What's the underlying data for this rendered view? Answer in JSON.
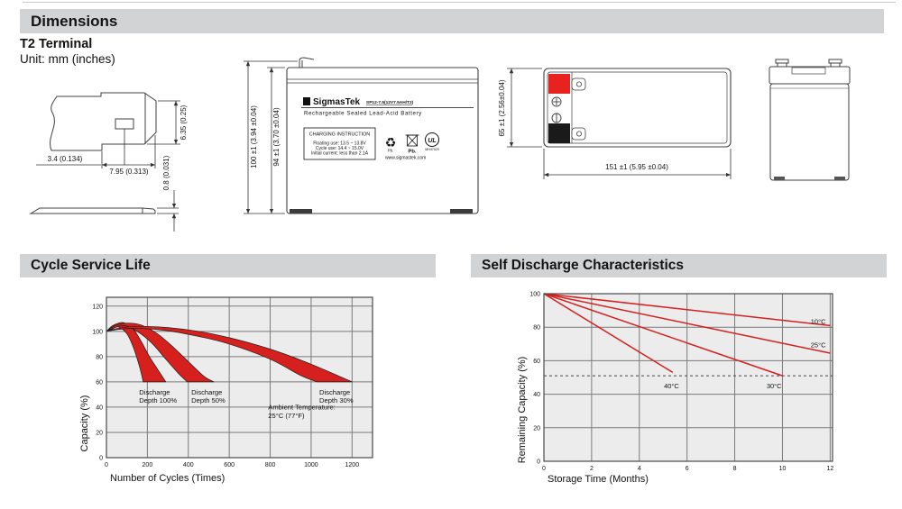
{
  "page": {
    "section_dimensions": "Dimensions",
    "terminal_type": "T2 Terminal",
    "unit_note": "Unit: mm (inches)"
  },
  "sections": {
    "cycle_title": "Cycle Service Life",
    "self_title": "Self Discharge Characteristics"
  },
  "terminal_drawing": {
    "height": "6.35 (0.25)",
    "hole_offset": "3.4 (0.134)",
    "width": "7.95 (0.313)",
    "thickness": "0.8 (0.031)"
  },
  "front_view": {
    "overall_height": "100 ±1 (3.94 ±0.04)",
    "case_height": "94 ±1 (3.70 ±0.04)"
  },
  "top_view": {
    "width_dim": "65 ±1 (2.56±0.04)",
    "length_dim": "151 ±1 (5.95 ±0.04)"
  },
  "battery_label": {
    "sigma": "Σ",
    "brand": "SigmasTek",
    "model": "SP12-7.5(12V7.5AH/T2)",
    "subtitle": "Rechargeable Sealed Lead-Acid Battery",
    "charging_title": "CHARGING INSTRUCTION",
    "charging_lines": [
      "Floating use: 13.5 ~ 13.8V",
      "Cycle use: 14.4 ~ 15.0V",
      "Initial current: less than 2.1A"
    ],
    "recycle_symbol": "♻",
    "recycle_pb": "Pb.",
    "bin_pb": "Pb.",
    "ul_text": "UL",
    "ul_code": "MH47929",
    "website": "www.sigmastek.com"
  },
  "colors": {
    "accent_red": "#d5201e",
    "terminal_red": "#e8231f",
    "terminal_black": "#1a1a1a",
    "header_gray": "#d2d3d5",
    "plot_bg": "#ececec",
    "grid": "#7a7a7a"
  },
  "chart_data": [
    {
      "type": "area",
      "title": "Cycle Service Life",
      "xlabel": "Number of Cycles (Times)",
      "ylabel": "Capacity (%)",
      "xlim": [
        0,
        1300
      ],
      "ylim": [
        0,
        127
      ],
      "xticks": [
        0,
        200,
        400,
        600,
        800,
        1000,
        1200
      ],
      "yticks": [
        0,
        20,
        40,
        60,
        80,
        100,
        120
      ],
      "grid": true,
      "legend_position": "none",
      "bands": [
        {
          "name": "Discharge Depth 100%",
          "upper": [
            [
              0,
              100
            ],
            [
              30,
              104.5
            ],
            [
              80,
              107
            ],
            [
              130,
              102
            ],
            [
              170,
              92
            ],
            [
              210,
              80
            ],
            [
              250,
              70
            ],
            [
              290,
              60
            ]
          ],
          "lower": [
            [
              0,
              100
            ],
            [
              30,
              102
            ],
            [
              60,
              103.5
            ],
            [
              100,
              98
            ],
            [
              130,
              88
            ],
            [
              160,
              73
            ],
            [
              180,
              60
            ]
          ]
        },
        {
          "name": "Discharge Depth 50%",
          "upper": [
            [
              0,
              100
            ],
            [
              40,
              104.5
            ],
            [
              100,
              106.5
            ],
            [
              170,
              105
            ],
            [
              250,
              98
            ],
            [
              330,
              87
            ],
            [
              420,
              73
            ],
            [
              480,
              64
            ],
            [
              525,
              60
            ]
          ],
          "lower": [
            [
              0,
              100
            ],
            [
              40,
              103
            ],
            [
              90,
              104.5
            ],
            [
              150,
              100
            ],
            [
              220,
              91
            ],
            [
              290,
              78
            ],
            [
              350,
              67
            ],
            [
              395,
              60
            ]
          ]
        },
        {
          "name": "Discharge Depth 30%",
          "upper": [
            [
              0,
              100
            ],
            [
              60,
              102.5
            ],
            [
              150,
              104
            ],
            [
              300,
              103
            ],
            [
              450,
              100
            ],
            [
              600,
              95
            ],
            [
              800,
              86
            ],
            [
              1000,
              74
            ],
            [
              1200,
              60
            ]
          ],
          "lower": [
            [
              0,
              100
            ],
            [
              60,
              101.5
            ],
            [
              150,
              102.5
            ],
            [
              300,
              100.5
            ],
            [
              450,
              96
            ],
            [
              600,
              90
            ],
            [
              800,
              78
            ],
            [
              950,
              65
            ],
            [
              1030,
              60
            ]
          ]
        }
      ],
      "annotations": [
        {
          "lines": [
            "Discharge",
            "Depth 100%"
          ],
          "x": 160,
          "y": 50
        },
        {
          "lines": [
            "Discharge",
            "Depth 50%"
          ],
          "x": 415,
          "y": 50
        },
        {
          "lines": [
            "Discharge",
            "Depth 30%"
          ],
          "x": 1040,
          "y": 50
        },
        {
          "lines": [
            "Ambient Temperature:",
            "25°C (77°F)"
          ],
          "x": 790,
          "y": 38
        }
      ]
    },
    {
      "type": "line",
      "title": "Self Discharge Characteristics",
      "xlabel": "Storage Time (Months)",
      "ylabel": "Remaining Capacity (%)",
      "xlim": [
        0,
        12.1
      ],
      "ylim": [
        0,
        100
      ],
      "xticks": [
        0,
        2,
        4,
        6,
        8,
        10,
        12
      ],
      "yticks": [
        0,
        20,
        40,
        60,
        80,
        100
      ],
      "grid": true,
      "reference_line_y": 51,
      "series": [
        {
          "name": "10°C",
          "points": [
            [
              0,
              100
            ],
            [
              12,
              81
            ]
          ],
          "label_x": 11.5,
          "label_y": 82
        },
        {
          "name": "25°C",
          "points": [
            [
              0,
              100
            ],
            [
              12,
              64.5
            ]
          ],
          "label_x": 11.5,
          "label_y": 68
        },
        {
          "name": "30°C",
          "points": [
            [
              0,
              100
            ],
            [
              10,
              51
            ]
          ],
          "label_x": 9.65,
          "label_y": 43.5
        },
        {
          "name": "40°C",
          "points": [
            [
              0,
              100
            ],
            [
              5.4,
              53
            ]
          ],
          "label_x": 5.35,
          "label_y": 43.5
        }
      ]
    }
  ]
}
